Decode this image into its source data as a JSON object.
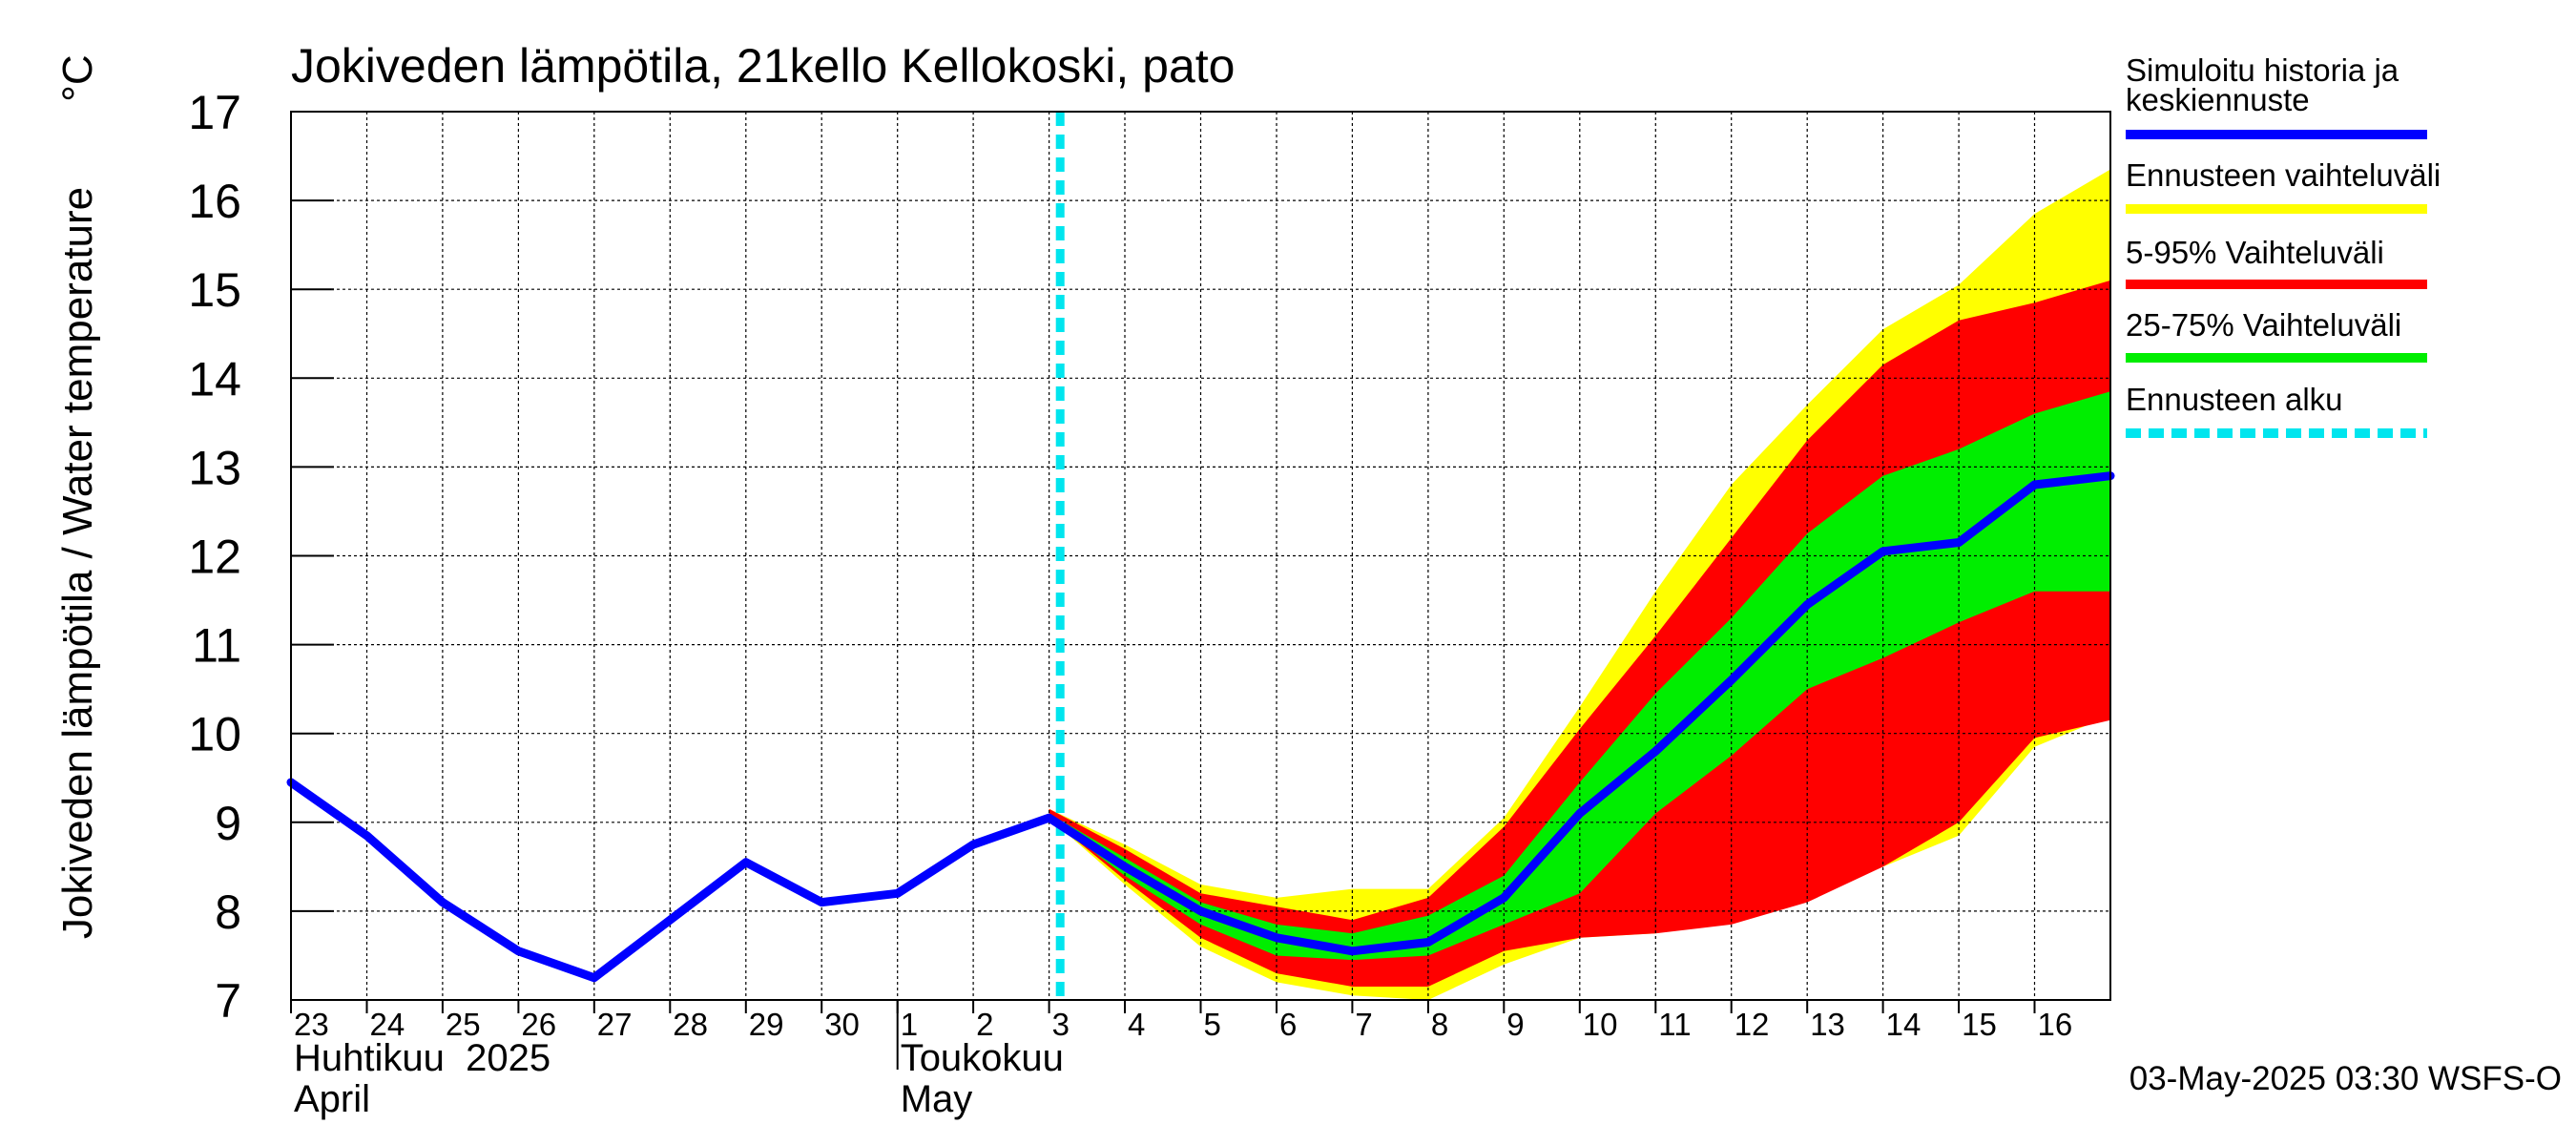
{
  "chart_data": {
    "type": "area",
    "title": "Jokiveden lämpötila, 21kello Kellokoski, pato",
    "ylabel": "Jokiveden lämpötila / Water temperature",
    "yunit": "°C",
    "ylim": [
      7,
      17
    ],
    "yticks": [
      7,
      8,
      9,
      10,
      11,
      12,
      13,
      14,
      15,
      16,
      17
    ],
    "grid": true,
    "x_start": "2025-04-23",
    "x_end": "2025-05-17",
    "day_ticks": [
      {
        "date": "2025-04-23",
        "label": "23"
      },
      {
        "date": "2025-04-24",
        "label": "24"
      },
      {
        "date": "2025-04-25",
        "label": "25"
      },
      {
        "date": "2025-04-26",
        "label": "26"
      },
      {
        "date": "2025-04-27",
        "label": "27"
      },
      {
        "date": "2025-04-28",
        "label": "28"
      },
      {
        "date": "2025-04-29",
        "label": "29"
      },
      {
        "date": "2025-04-30",
        "label": "30"
      },
      {
        "date": "2025-05-01",
        "label": "1"
      },
      {
        "date": "2025-05-02",
        "label": "2"
      },
      {
        "date": "2025-05-03",
        "label": "3"
      },
      {
        "date": "2025-05-04",
        "label": "4"
      },
      {
        "date": "2025-05-05",
        "label": "5"
      },
      {
        "date": "2025-05-06",
        "label": "6"
      },
      {
        "date": "2025-05-07",
        "label": "7"
      },
      {
        "date": "2025-05-08",
        "label": "8"
      },
      {
        "date": "2025-05-09",
        "label": "9"
      },
      {
        "date": "2025-05-10",
        "label": "10"
      },
      {
        "date": "2025-05-11",
        "label": "11"
      },
      {
        "date": "2025-05-12",
        "label": "12"
      },
      {
        "date": "2025-05-13",
        "label": "13"
      },
      {
        "date": "2025-05-14",
        "label": "14"
      },
      {
        "date": "2025-05-15",
        "label": "15"
      },
      {
        "date": "2025-05-16",
        "label": "16"
      }
    ],
    "month_labels": [
      {
        "date": "2025-04-23",
        "fi": "Huhtikuu  2025",
        "en": "April"
      },
      {
        "date": "2025-05-01",
        "fi": "Toukokuu",
        "en": "May"
      }
    ],
    "month_divider_date": "2025-05-01",
    "forecast_start": "2025-05-03T03:30",
    "history": {
      "name": "Simuloitu historia ja keskiennuste",
      "color": "#0000ff",
      "points": [
        [
          "2025-04-23",
          9.45
        ],
        [
          "2025-04-24",
          8.85
        ],
        [
          "2025-04-25",
          8.1
        ],
        [
          "2025-04-26",
          7.55
        ],
        [
          "2025-04-27",
          7.25
        ],
        [
          "2025-04-28",
          7.9
        ],
        [
          "2025-04-29",
          8.55
        ],
        [
          "2025-04-30",
          8.1
        ],
        [
          "2025-05-01",
          8.2
        ],
        [
          "2025-05-02",
          8.75
        ],
        [
          "2025-05-03",
          9.05
        ],
        [
          "2025-05-04",
          8.5
        ],
        [
          "2025-05-05",
          8.0
        ],
        [
          "2025-05-06",
          7.7
        ],
        [
          "2025-05-07",
          7.55
        ],
        [
          "2025-05-08",
          7.65
        ],
        [
          "2025-05-09",
          8.15
        ],
        [
          "2025-05-10",
          9.1
        ],
        [
          "2025-05-11",
          9.8
        ],
        [
          "2025-05-12",
          10.6
        ],
        [
          "2025-05-13",
          11.45
        ],
        [
          "2025-05-14",
          12.05
        ],
        [
          "2025-05-15",
          12.15
        ],
        [
          "2025-05-16",
          12.8
        ],
        [
          "2025-05-17",
          12.9
        ]
      ]
    },
    "bands": [
      {
        "name": "Ennusteen vaihteluväli",
        "color": "#ffff00",
        "x": [
          "2025-05-03",
          "2025-05-04",
          "2025-05-05",
          "2025-05-06",
          "2025-05-07",
          "2025-05-08",
          "2025-05-09",
          "2025-05-10",
          "2025-05-11",
          "2025-05-12",
          "2025-05-13",
          "2025-05-14",
          "2025-05-15",
          "2025-05-16",
          "2025-05-17"
        ],
        "low": [
          9.05,
          8.3,
          7.6,
          7.2,
          7.05,
          7.0,
          7.4,
          7.7,
          7.75,
          7.9,
          8.15,
          8.5,
          8.85,
          9.85,
          10.2
        ],
        "high": [
          9.15,
          8.75,
          8.3,
          8.15,
          8.25,
          8.25,
          9.05,
          10.3,
          11.6,
          12.8,
          13.7,
          14.55,
          15.05,
          15.85,
          16.35
        ]
      },
      {
        "name": "5-95% Vaihteluväli",
        "color": "#ff0000",
        "x": [
          "2025-05-03",
          "2025-05-04",
          "2025-05-05",
          "2025-05-06",
          "2025-05-07",
          "2025-05-08",
          "2025-05-09",
          "2025-05-10",
          "2025-05-11",
          "2025-05-12",
          "2025-05-13",
          "2025-05-14",
          "2025-05-15",
          "2025-05-16",
          "2025-05-17"
        ],
        "low": [
          9.05,
          8.35,
          7.7,
          7.3,
          7.15,
          7.15,
          7.55,
          7.7,
          7.75,
          7.85,
          8.1,
          8.5,
          9.0,
          9.95,
          10.15
        ],
        "high": [
          9.15,
          8.7,
          8.2,
          8.05,
          7.9,
          8.15,
          8.95,
          10.05,
          11.1,
          12.2,
          13.3,
          14.15,
          14.65,
          14.85,
          15.1
        ]
      },
      {
        "name": "25-75% Vaihteluväli",
        "color": "#00ee00",
        "x": [
          "2025-05-03",
          "2025-05-04",
          "2025-05-05",
          "2025-05-06",
          "2025-05-07",
          "2025-05-08",
          "2025-05-09",
          "2025-05-10",
          "2025-05-11",
          "2025-05-12",
          "2025-05-13",
          "2025-05-14",
          "2025-05-15",
          "2025-05-16",
          "2025-05-17"
        ],
        "low": [
          9.05,
          8.4,
          7.85,
          7.5,
          7.45,
          7.5,
          7.85,
          8.2,
          9.1,
          9.75,
          10.5,
          10.85,
          11.25,
          11.6,
          11.6
        ],
        "high": [
          9.1,
          8.6,
          8.1,
          7.85,
          7.75,
          7.95,
          8.4,
          9.45,
          10.45,
          11.3,
          12.25,
          12.9,
          13.2,
          13.6,
          13.85
        ]
      }
    ],
    "legend_position": "right",
    "legend": [
      {
        "label": "Simuloitu historia ja keskiennuste",
        "lines": [
          "Simuloitu historia ja",
          "keskiennuste"
        ],
        "color": "#0000ff",
        "style": "solid"
      },
      {
        "label": "Ennusteen vaihteluväli",
        "lines": [
          "Ennusteen vaihteluväli"
        ],
        "color": "#ffff00",
        "style": "solid"
      },
      {
        "label": "5-95% Vaihteluväli",
        "lines": [
          "5-95% Vaihteluväli"
        ],
        "color": "#ff0000",
        "style": "solid"
      },
      {
        "label": "25-75% Vaihteluväli",
        "lines": [
          "25-75% Vaihteluväli"
        ],
        "color": "#00ee00",
        "style": "solid"
      },
      {
        "label": "Ennusteen alku",
        "lines": [
          "Ennusteen alku"
        ],
        "color": "#00e5ee",
        "style": "dashed"
      }
    ],
    "footer": "03-May-2025 03:30 WSFS-O"
  }
}
